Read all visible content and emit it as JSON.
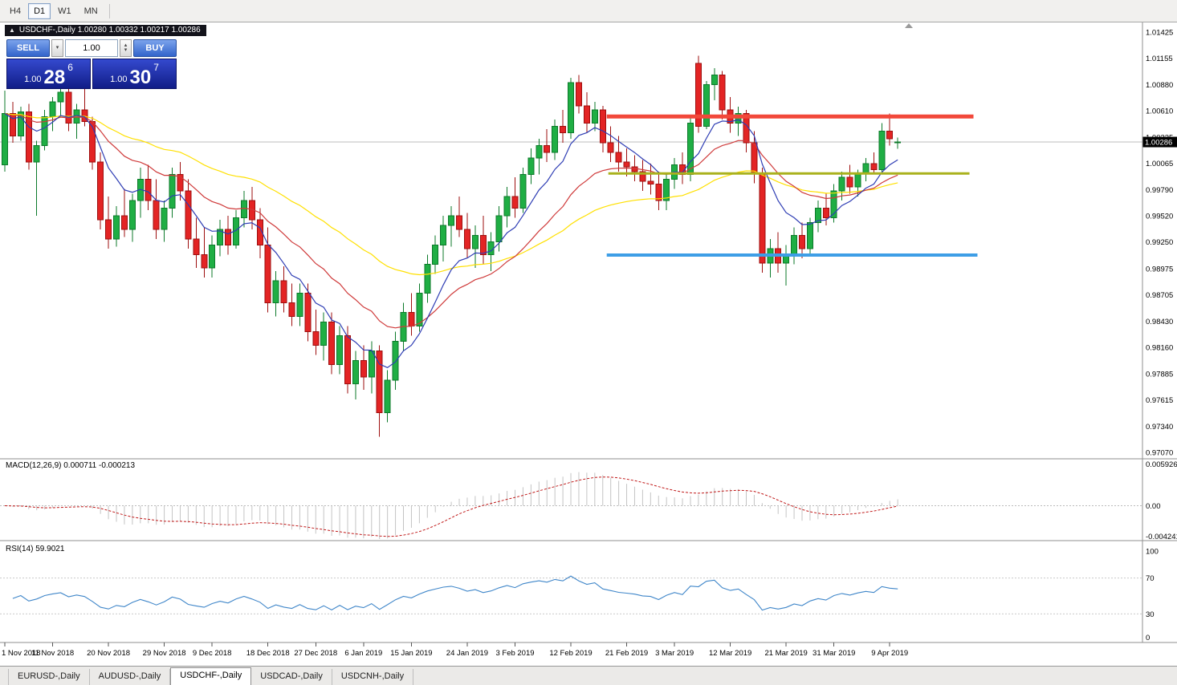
{
  "toolbar": {
    "timeframes": [
      {
        "label": "H4",
        "active": false
      },
      {
        "label": "D1",
        "active": true
      },
      {
        "label": "W1",
        "active": false
      },
      {
        "label": "MN",
        "active": false
      }
    ]
  },
  "chart_header": {
    "arrow": "▲",
    "text": "USDCHF-,Daily  1.00280 1.00332 1.00217 1.00286"
  },
  "trade_panel": {
    "sell_label": "SELL",
    "buy_label": "BUY",
    "volume": "1.00",
    "decrement_glyph": "▾",
    "increment_up_glyph": "▴",
    "increment_down_glyph": "▾",
    "sell_price": {
      "prefix": "1.00",
      "big": "28",
      "sup": "6"
    },
    "buy_price": {
      "prefix": "1.00",
      "big": "30",
      "sup": "7"
    }
  },
  "chart_data": {
    "type": "candlestick",
    "symbol": "USDCHF-,Daily",
    "ohlc_display": {
      "open": "1.00280",
      "high": "1.00332",
      "low": "1.00217",
      "close": "1.00286"
    },
    "current_price": "1.00286",
    "y_axis_labels": [
      "1.01425",
      "1.01155",
      "1.00880",
      "1.00610",
      "1.00335",
      "1.00065",
      "0.99790",
      "0.99520",
      "0.99250",
      "0.98975",
      "0.98705",
      "0.98430",
      "0.98160",
      "0.97885",
      "0.97615",
      "0.97340",
      "0.97070"
    ],
    "x_ticks": [
      {
        "i": 0,
        "label": "1 Nov 2018"
      },
      {
        "i": 6,
        "label": "11 Nov 2018"
      },
      {
        "i": 13,
        "label": "20 Nov 2018"
      },
      {
        "i": 20,
        "label": "29 Nov 2018"
      },
      {
        "i": 26,
        "label": "9 Dec 2018"
      },
      {
        "i": 33,
        "label": "18 Dec 2018"
      },
      {
        "i": 39,
        "label": "27 Dec 2018"
      },
      {
        "i": 45,
        "label": "6 Jan 2019"
      },
      {
        "i": 51,
        "label": "15 Jan 2019"
      },
      {
        "i": 58,
        "label": "24 Jan 2019"
      },
      {
        "i": 64,
        "label": "3 Feb 2019"
      },
      {
        "i": 71,
        "label": "12 Feb 2019"
      },
      {
        "i": 78,
        "label": "21 Feb 2019"
      },
      {
        "i": 84,
        "label": "3 Mar 2019"
      },
      {
        "i": 91,
        "label": "12 Mar 2019"
      },
      {
        "i": 98,
        "label": "21 Mar 2019"
      },
      {
        "i": 104,
        "label": "31 Mar 2019"
      },
      {
        "i": 111,
        "label": "9 Apr 2019"
      }
    ],
    "candles": [
      [
        1.0005,
        1.0082,
        0.9998,
        1.0058
      ],
      [
        1.0058,
        1.007,
        1.0028,
        1.0035
      ],
      [
        1.0035,
        1.0065,
        1.003,
        1.006
      ],
      [
        1.006,
        1.0068,
        1.0,
        1.0008
      ],
      [
        1.0008,
        1.003,
        0.9952,
        1.0025
      ],
      [
        1.0025,
        1.0062,
        1.002,
        1.0055
      ],
      [
        1.0055,
        1.0075,
        1.004,
        1.007
      ],
      [
        1.007,
        1.0085,
        1.0055,
        1.008
      ],
      [
        1.008,
        1.0088,
        1.004,
        1.0048
      ],
      [
        1.0048,
        1.0068,
        1.0032,
        1.0062
      ],
      [
        1.0062,
        1.0085,
        1.0045,
        1.005
      ],
      [
        1.005,
        1.0055,
        1.0,
        1.0008
      ],
      [
        1.0008,
        1.0018,
        0.9938,
        0.9948
      ],
      [
        0.9948,
        0.9972,
        0.9918,
        0.9928
      ],
      [
        0.9928,
        0.9962,
        0.992,
        0.9952
      ],
      [
        0.9952,
        0.998,
        0.993,
        0.9938
      ],
      [
        0.9938,
        0.9975,
        0.9925,
        0.9968
      ],
      [
        0.9968,
        1.0002,
        0.995,
        0.999
      ],
      [
        0.999,
        1.0005,
        0.9958,
        0.9968
      ],
      [
        0.9968,
        0.999,
        0.9928,
        0.9938
      ],
      [
        0.9938,
        0.9968,
        0.9925,
        0.996
      ],
      [
        0.996,
        1.0002,
        0.995,
        0.9995
      ],
      [
        0.9995,
        1.0008,
        0.9968,
        0.9978
      ],
      [
        0.9978,
        0.999,
        0.9918,
        0.9928
      ],
      [
        0.9928,
        0.995,
        0.9898,
        0.9912
      ],
      [
        0.9912,
        0.994,
        0.9888,
        0.9898
      ],
      [
        0.9898,
        0.9932,
        0.9888,
        0.9922
      ],
      [
        0.9922,
        0.9948,
        0.991,
        0.9938
      ],
      [
        0.9938,
        0.9952,
        0.9912,
        0.9922
      ],
      [
        0.9922,
        0.9958,
        0.9918,
        0.995
      ],
      [
        0.995,
        0.9978,
        0.994,
        0.9968
      ],
      [
        0.9968,
        0.9982,
        0.9938,
        0.9948
      ],
      [
        0.9948,
        0.996,
        0.9908,
        0.9922
      ],
      [
        0.9922,
        0.994,
        0.9852,
        0.9862
      ],
      [
        0.9862,
        0.9895,
        0.9848,
        0.9885
      ],
      [
        0.9885,
        0.99,
        0.9852,
        0.9862
      ],
      [
        0.9862,
        0.9882,
        0.9838,
        0.9848
      ],
      [
        0.9848,
        0.9882,
        0.9838,
        0.9872
      ],
      [
        0.9872,
        0.9882,
        0.9822,
        0.9832
      ],
      [
        0.9832,
        0.9855,
        0.9808,
        0.9818
      ],
      [
        0.9818,
        0.9852,
        0.9802,
        0.9842
      ],
      [
        0.9842,
        0.9852,
        0.9788,
        0.9798
      ],
      [
        0.9798,
        0.9838,
        0.9788,
        0.9828
      ],
      [
        0.9828,
        0.9838,
        0.9768,
        0.9778
      ],
      [
        0.9778,
        0.9812,
        0.9762,
        0.9802
      ],
      [
        0.9802,
        0.9818,
        0.9772,
        0.9785
      ],
      [
        0.9785,
        0.9822,
        0.9768,
        0.9812
      ],
      [
        0.9812,
        0.9818,
        0.9723,
        0.9748
      ],
      [
        0.9748,
        0.9792,
        0.9738,
        0.9782
      ],
      [
        0.9782,
        0.9832,
        0.9772,
        0.9822
      ],
      [
        0.9822,
        0.9862,
        0.9812,
        0.9852
      ],
      [
        0.9852,
        0.9872,
        0.9828,
        0.9838
      ],
      [
        0.9838,
        0.9882,
        0.9832,
        0.9872
      ],
      [
        0.9872,
        0.9912,
        0.9862,
        0.9902
      ],
      [
        0.9902,
        0.9932,
        0.9892,
        0.9922
      ],
      [
        0.9922,
        0.9952,
        0.9905,
        0.9942
      ],
      [
        0.9942,
        0.9962,
        0.992,
        0.9952
      ],
      [
        0.9952,
        0.9972,
        0.993,
        0.9938
      ],
      [
        0.9938,
        0.9955,
        0.9908,
        0.9918
      ],
      [
        0.9918,
        0.9942,
        0.9898,
        0.9932
      ],
      [
        0.9932,
        0.9952,
        0.9902,
        0.9912
      ],
      [
        0.9912,
        0.9935,
        0.9895,
        0.9925
      ],
      [
        0.9925,
        0.9962,
        0.9915,
        0.9952
      ],
      [
        0.9952,
        0.9982,
        0.994,
        0.9972
      ],
      [
        0.9972,
        0.9992,
        0.995,
        0.996
      ],
      [
        0.996,
        1.0002,
        0.9955,
        0.9995
      ],
      [
        0.9995,
        1.0022,
        0.9985,
        1.0012
      ],
      [
        1.0012,
        1.0032,
        0.9995,
        1.0025
      ],
      [
        1.0025,
        1.0042,
        1.0008,
        1.0018
      ],
      [
        1.0018,
        1.0052,
        1.001,
        1.0045
      ],
      [
        1.0045,
        1.0062,
        1.0028,
        1.0038
      ],
      [
        1.0038,
        1.0095,
        1.0032,
        1.009
      ],
      [
        1.009,
        1.0098,
        1.0058,
        1.0066
      ],
      [
        1.0066,
        1.008,
        1.0038,
        1.0048
      ],
      [
        1.0048,
        1.007,
        1.004,
        1.0062
      ],
      [
        1.0062,
        1.0066,
        1.0018,
        1.0028
      ],
      [
        1.0028,
        1.0045,
        1.0008,
        1.0018
      ],
      [
        1.0018,
        1.0035,
        0.9998,
        1.0008
      ],
      [
        1.0008,
        1.0022,
        0.9993,
        1.0003
      ],
      [
        1.0003,
        1.0015,
        0.9988,
        0.9998
      ],
      [
        0.9998,
        1.001,
        0.9978,
        0.9988
      ],
      [
        0.9988,
        1.0006,
        0.9974,
        0.9985
      ],
      [
        0.9985,
        0.9998,
        0.9958,
        0.9968
      ],
      [
        0.9968,
        0.9996,
        0.9958,
        0.999
      ],
      [
        0.999,
        1.0012,
        0.998,
        1.0005
      ],
      [
        1.0005,
        1.0018,
        0.9985,
        0.9995
      ],
      [
        0.9995,
        1.0055,
        0.9988,
        1.0048
      ],
      [
        1.011,
        1.0118,
        1.0038,
        1.0045
      ],
      [
        1.0045,
        1.0092,
        1.0042,
        1.0088
      ],
      [
        1.0088,
        1.0105,
        1.0072,
        1.0098
      ],
      [
        1.0098,
        1.0102,
        1.0052,
        1.0062
      ],
      [
        1.0062,
        1.0075,
        1.0038,
        1.0048
      ],
      [
        1.0048,
        1.0065,
        1.0035,
        1.0058
      ],
      [
        1.0058,
        1.0062,
        1.0018,
        1.0028
      ],
      [
        1.0028,
        1.004,
        0.9986,
        0.9996
      ],
      [
        0.9996,
        1.0002,
        0.9893,
        0.9903
      ],
      [
        0.9903,
        0.9928,
        0.9888,
        0.9918
      ],
      [
        0.9918,
        0.9935,
        0.9893,
        0.9903
      ],
      [
        0.9903,
        0.9922,
        0.988,
        0.9912
      ],
      [
        0.9912,
        0.994,
        0.9902,
        0.9932
      ],
      [
        0.9932,
        0.9945,
        0.9908,
        0.9918
      ],
      [
        0.9918,
        0.995,
        0.9912,
        0.9945
      ],
      [
        0.9945,
        0.9968,
        0.9935,
        0.996
      ],
      [
        0.996,
        0.9975,
        0.9942,
        0.995
      ],
      [
        0.995,
        0.9985,
        0.9945,
        0.9978
      ],
      [
        0.9978,
        0.9998,
        0.9968,
        0.9992
      ],
      [
        0.9992,
        1.0005,
        0.9975,
        0.9982
      ],
      [
        0.9982,
        1.0,
        0.9972,
        0.9996
      ],
      [
        0.9996,
        1.0012,
        0.9988,
        1.0006
      ],
      [
        1.0006,
        1.0018,
        0.9995,
        1.0
      ],
      [
        1.0,
        1.0048,
        0.9996,
        1.004
      ],
      [
        1.004,
        1.0058,
        1.0025,
        1.0032
      ],
      [
        1.0028,
        1.00332,
        1.00217,
        1.00286
      ]
    ],
    "moving_averages": [
      {
        "period": 8,
        "color": "#2e3db4"
      },
      {
        "period": 20,
        "color": "#cf3a3a"
      },
      {
        "period": 45,
        "color": "#ffe000"
      }
    ],
    "h_lines": [
      {
        "price": 1.0055,
        "color": "#f2483a",
        "width": 5,
        "from_i": 75.5,
        "to_i": 121.5
      },
      {
        "price": 0.9996,
        "color": "#a9b11c",
        "width": 3,
        "from_i": 75.7,
        "to_i": 121.0
      },
      {
        "price": 0.99115,
        "color": "#3e9ee6",
        "width": 4,
        "from_i": 75.5,
        "to_i": 122.0
      }
    ],
    "colors": {
      "up_fill": "#1fae44",
      "up_stroke": "#0c7a2a",
      "down_fill": "#e32424",
      "down_stroke": "#9e0f0f",
      "price_line": "#bdbdbd",
      "price_tag_bg": "#000000",
      "price_tag_text": "#ffffff"
    },
    "macd": {
      "header": "MACD(12,26,9) 0.000711 -0.000213",
      "fast": 12,
      "slow": 26,
      "signal": 9,
      "axis_labels": [
        "0.005926",
        "0.00",
        "-0.004241"
      ],
      "hist_color": "#c4c4c4",
      "signal_color": "#c01818"
    },
    "rsi": {
      "header": "RSI(14) 59.9021",
      "period": 14,
      "axis_labels": [
        "100",
        "70",
        "30",
        "0"
      ],
      "axis_values": [
        100,
        70,
        30,
        0
      ],
      "levels": [
        70,
        30
      ],
      "line_color": "#3f86c9"
    }
  },
  "tabs": {
    "items": [
      "EURUSD-,Daily",
      "AUDUSD-,Daily",
      "USDCHF-,Daily",
      "USDCAD-,Daily",
      "USDCNH-,Daily"
    ],
    "active": "USDCHF-,Daily"
  }
}
